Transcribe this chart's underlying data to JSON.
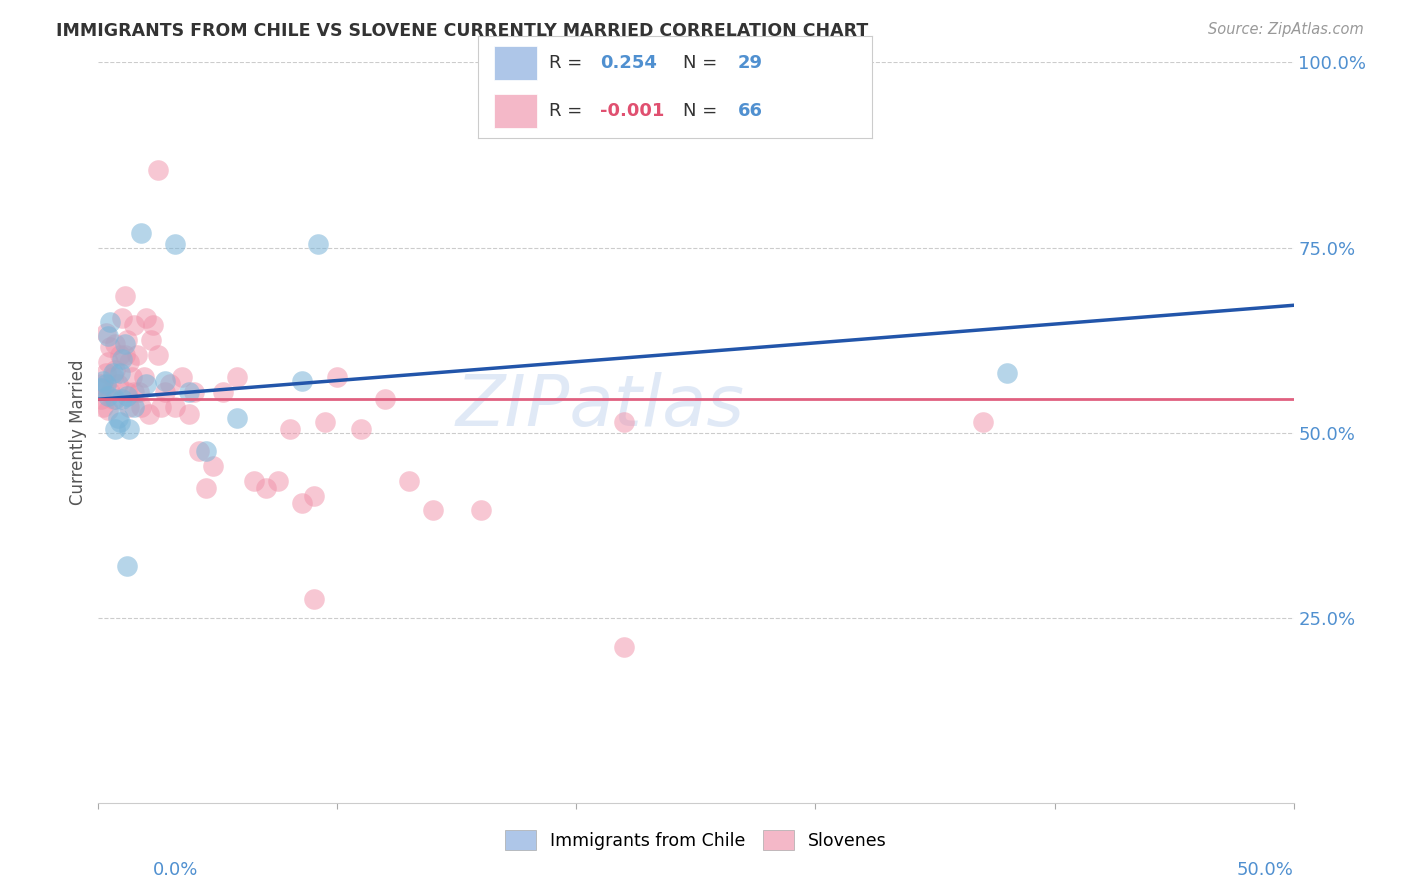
{
  "title": "IMMIGRANTS FROM CHILE VS SLOVENE CURRENTLY MARRIED CORRELATION CHART",
  "source": "Source: ZipAtlas.com",
  "ylabel": "Currently Married",
  "xlim": [
    0,
    0.5
  ],
  "ylim": [
    0,
    1.0
  ],
  "legend_color1": "#aec6e8",
  "legend_color2": "#f4b8c8",
  "scatter_color_chile": "#7ab4d8",
  "scatter_color_slovene": "#f090a8",
  "trend_color_chile": "#2255aa",
  "trend_color_slovene": "#e06080",
  "ytick_color": "#5090d0",
  "xlabel_color": "#5090d0",
  "title_color": "#333333",
  "watermark": "ZIPatlas",
  "chile_trend": [
    0.545,
    0.672
  ],
  "slovene_trend": [
    0.545,
    0.545
  ],
  "chile_x": [
    0.001,
    0.002,
    0.003,
    0.004,
    0.004,
    0.005,
    0.006,
    0.007,
    0.008,
    0.009,
    0.01,
    0.011,
    0.012,
    0.013,
    0.015,
    0.018,
    0.02,
    0.028,
    0.032,
    0.045,
    0.058,
    0.085,
    0.092,
    0.038,
    0.012,
    0.009,
    0.007,
    0.38,
    0.01
  ],
  "chile_y": [
    0.56,
    0.57,
    0.565,
    0.55,
    0.63,
    0.65,
    0.58,
    0.545,
    0.52,
    0.58,
    0.6,
    0.62,
    0.55,
    0.505,
    0.535,
    0.77,
    0.565,
    0.57,
    0.755,
    0.475,
    0.52,
    0.57,
    0.755,
    0.555,
    0.32,
    0.515,
    0.505,
    0.58,
    0.545
  ],
  "slovene_x": [
    0.001,
    0.001,
    0.002,
    0.002,
    0.003,
    0.003,
    0.004,
    0.004,
    0.005,
    0.005,
    0.006,
    0.006,
    0.007,
    0.007,
    0.008,
    0.009,
    0.01,
    0.011,
    0.011,
    0.012,
    0.012,
    0.013,
    0.013,
    0.014,
    0.015,
    0.015,
    0.016,
    0.017,
    0.018,
    0.019,
    0.02,
    0.021,
    0.022,
    0.023,
    0.025,
    0.026,
    0.028,
    0.03,
    0.032,
    0.035,
    0.038,
    0.04,
    0.042,
    0.045,
    0.048,
    0.052,
    0.058,
    0.065,
    0.07,
    0.075,
    0.08,
    0.085,
    0.09,
    0.095,
    0.1,
    0.11,
    0.12,
    0.13,
    0.14,
    0.16,
    0.22,
    0.37,
    0.025,
    0.09,
    0.22
  ],
  "slovene_y": [
    0.565,
    0.545,
    0.56,
    0.535,
    0.58,
    0.635,
    0.595,
    0.53,
    0.615,
    0.555,
    0.575,
    0.545,
    0.62,
    0.585,
    0.565,
    0.605,
    0.655,
    0.685,
    0.605,
    0.625,
    0.555,
    0.595,
    0.535,
    0.575,
    0.645,
    0.555,
    0.605,
    0.555,
    0.535,
    0.575,
    0.655,
    0.525,
    0.625,
    0.645,
    0.605,
    0.535,
    0.555,
    0.565,
    0.535,
    0.575,
    0.525,
    0.555,
    0.475,
    0.425,
    0.455,
    0.555,
    0.575,
    0.435,
    0.425,
    0.435,
    0.505,
    0.405,
    0.415,
    0.515,
    0.575,
    0.505,
    0.545,
    0.435,
    0.395,
    0.395,
    0.515,
    0.515,
    0.855,
    0.275,
    0.21
  ]
}
